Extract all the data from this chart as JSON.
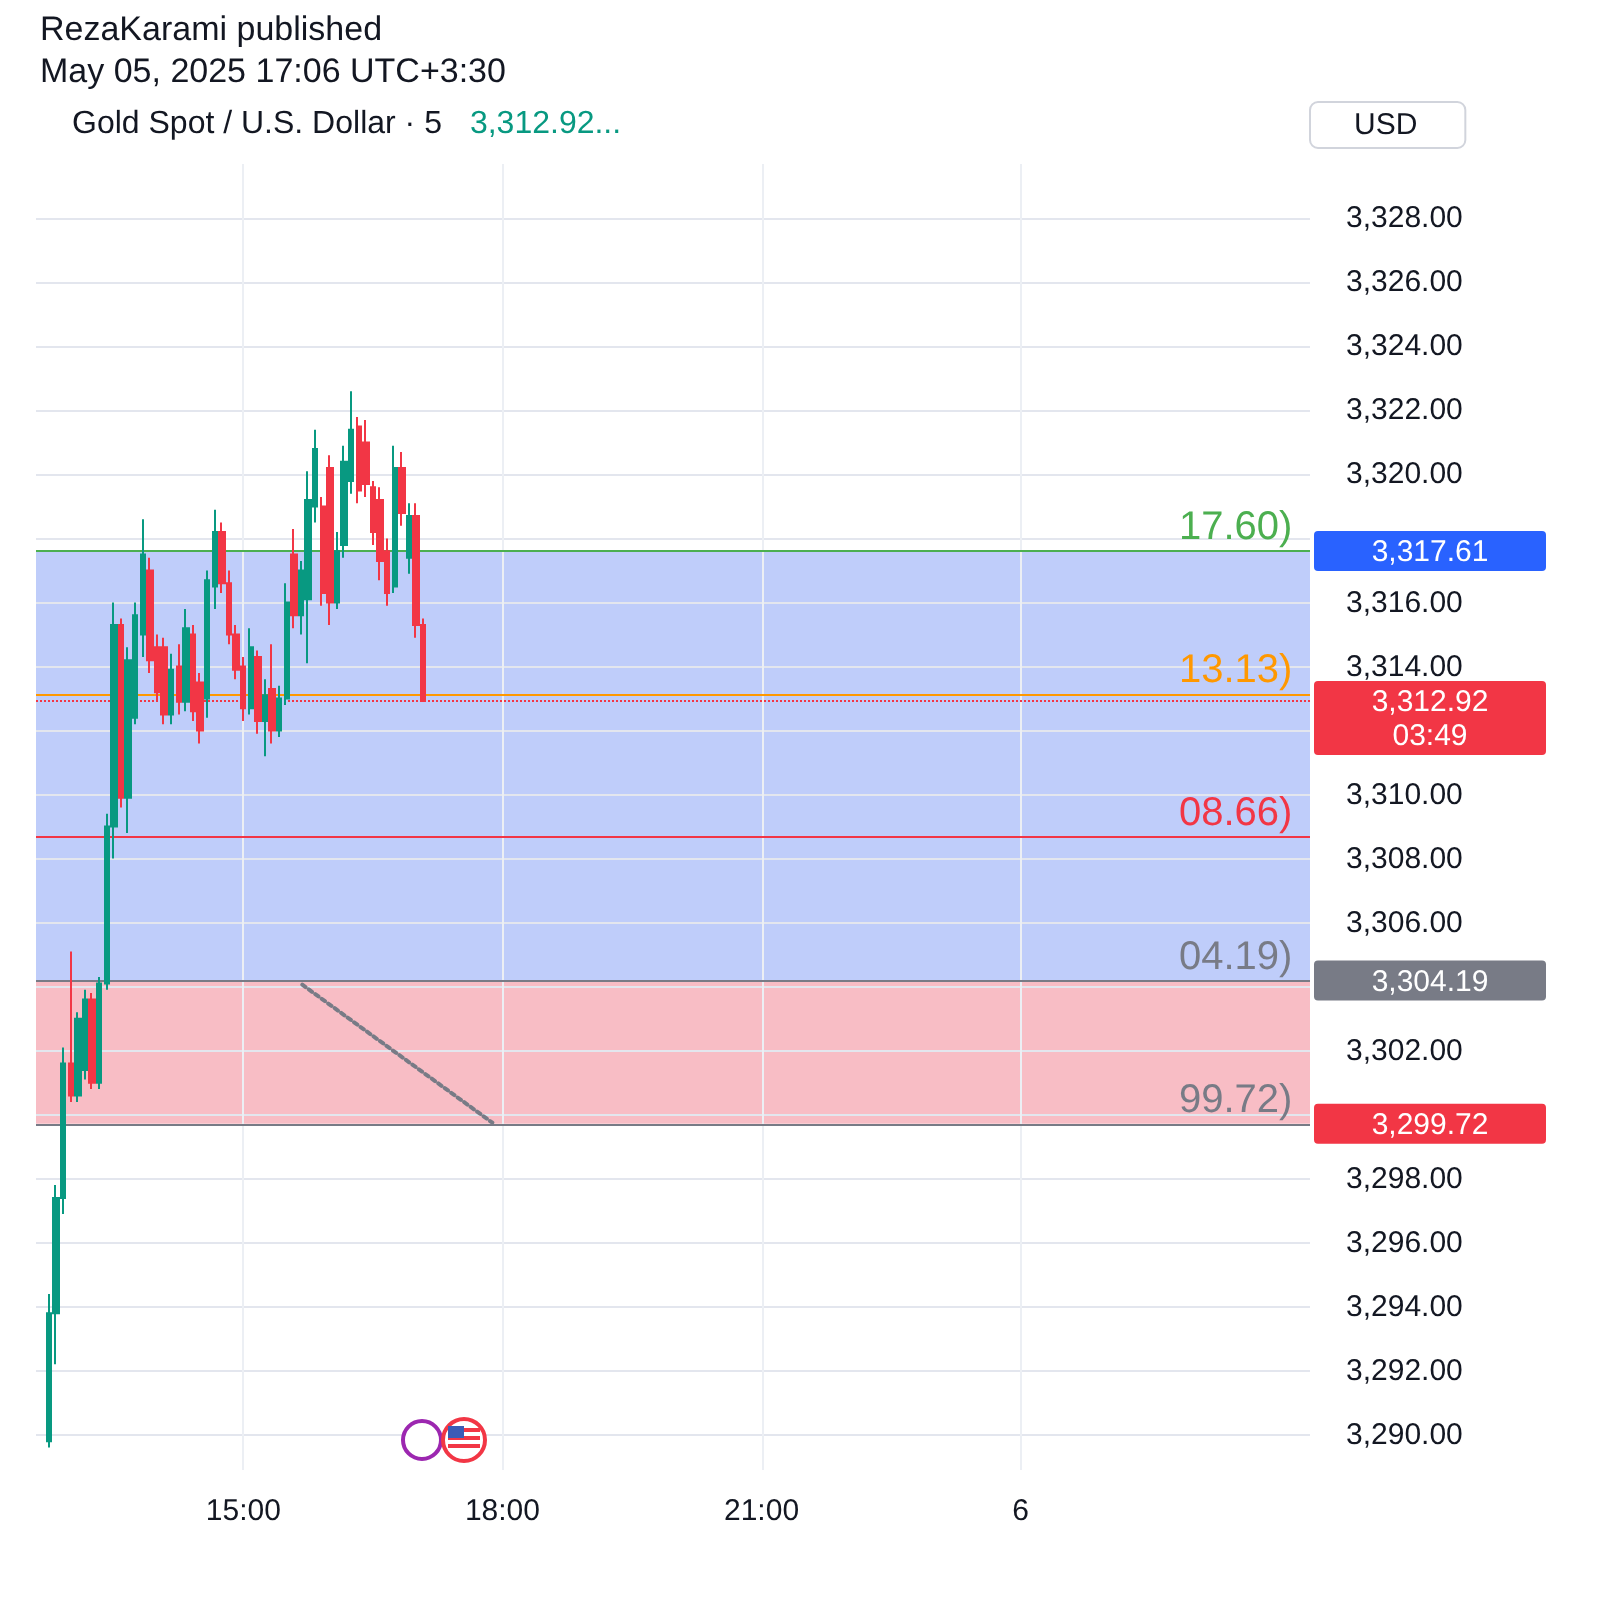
{
  "chart_data": {
    "type": "candlestick",
    "title": "Gold Spot / U.S. Dollar · 5",
    "subtitle": "3,312.92...",
    "ylabel": "USD",
    "annotations": [
      "RezaKarami published",
      "May 05, 2025 17:06 UTC+3:30",
      {
        "text": "17.60)",
        "x": "2025-05-06T01:50",
        "y": 3317.6
      },
      {
        "text": "13.13)",
        "x": "2025-05-06T01:50",
        "y": 3313.13
      },
      {
        "text": "08.66)",
        "x": "2025-05-06T01:50",
        "y": 3308.66
      },
      {
        "text": "04.19)",
        "x": "2025-05-06T01:50",
        "y": 3304.19
      },
      {
        "text": "99.72)",
        "x": "2025-05-06T01:50",
        "y": 3299.72
      },
      {
        "text": "3,317.61",
        "x": "2025-05-06T03:21",
        "y": 3317.61
      },
      {
        "text": "3,312.92\n03:49",
        "x": "2025-05-06T03:21",
        "y": 3312.92
      },
      {
        "text": "3,304.19",
        "x": "2025-05-06T03:21",
        "y": 3304.19
      },
      {
        "text": "3,299.72",
        "x": "2025-05-06T03:21",
        "y": 3299.72
      }
    ],
    "series": [
      {
        "x": [
          "2025-05-05T12:45",
          "2025-05-05T12:50",
          "2025-05-05T12:55",
          "2025-05-05T13:00",
          "2025-05-05T13:05",
          "2025-05-05T13:10",
          "2025-05-05T13:15",
          "2025-05-05T13:20",
          "2025-05-05T13:25",
          "2025-05-05T13:30",
          "2025-05-05T13:35",
          "2025-05-05T13:40",
          "2025-05-05T13:45",
          "2025-05-05T13:50",
          "2025-05-05T13:55",
          "2025-05-05T14:00",
          "2025-05-05T14:05",
          "2025-05-05T14:10",
          "2025-05-05T14:15",
          "2025-05-05T14:20",
          "2025-05-05T14:25",
          "2025-05-05T14:30",
          "2025-05-05T14:35",
          "2025-05-05T14:40",
          "2025-05-05T14:45",
          "2025-05-05T14:50",
          "2025-05-05T14:55",
          "2025-05-05T15:00",
          "2025-05-05T15:05",
          "2025-05-05T15:10",
          "2025-05-05T15:15",
          "2025-05-05T15:20",
          "2025-05-05T15:25",
          "2025-05-05T15:30",
          "2025-05-05T15:35",
          "2025-05-05T15:40",
          "2025-05-05T15:45",
          "2025-05-05T15:50",
          "2025-05-05T15:55",
          "2025-05-05T16:00",
          "2025-05-05T16:05",
          "2025-05-05T16:10",
          "2025-05-05T16:15",
          "2025-05-05T16:20",
          "2025-05-05T16:25",
          "2025-05-05T16:30",
          "2025-05-05T16:35",
          "2025-05-05T16:40",
          "2025-05-05T16:45",
          "2025-05-05T16:50",
          "2025-05-05T16:55",
          "2025-05-05T17:00",
          "2025-05-05T17:05"
        ],
        "ohlc": [
          [
            3289.8,
            3294.4,
            3289.6,
            3293.8
          ],
          [
            3293.8,
            3297.8,
            3292.2,
            3297.4
          ],
          [
            3297.4,
            3302.1,
            3296.9,
            3301.6
          ],
          [
            3301.6,
            3305.1,
            3300.4,
            3300.6
          ],
          [
            3300.6,
            3303.2,
            3300.4,
            3303.0
          ],
          [
            3301.4,
            3303.9,
            3301.1,
            3303.6
          ],
          [
            3303.6,
            3303.8,
            3300.8,
            3301.0
          ],
          [
            3301.0,
            3304.3,
            3300.8,
            3304.1
          ],
          [
            3304.1,
            3309.4,
            3303.9,
            3309.0
          ],
          [
            3309.0,
            3316.0,
            3308.0,
            3315.3
          ],
          [
            3315.3,
            3315.5,
            3309.6,
            3309.9
          ],
          [
            3309.9,
            3314.6,
            3308.8,
            3314.2
          ],
          [
            3312.4,
            3316.0,
            3312.2,
            3315.6
          ],
          [
            3315.0,
            3318.6,
            3314.3,
            3317.5
          ],
          [
            3317.0,
            3317.4,
            3313.8,
            3314.2
          ],
          [
            3314.6,
            3315.0,
            3312.9,
            3313.2
          ],
          [
            3314.6,
            3314.9,
            3312.2,
            3312.5
          ],
          [
            3312.5,
            3314.4,
            3312.2,
            3313.9
          ],
          [
            3314.0,
            3314.7,
            3312.5,
            3312.9
          ],
          [
            3312.9,
            3315.8,
            3312.6,
            3315.2
          ],
          [
            3315.0,
            3315.3,
            3312.3,
            3312.6
          ],
          [
            3313.5,
            3313.8,
            3311.6,
            3312.0
          ],
          [
            3313.0,
            3317.0,
            3312.4,
            3316.7
          ],
          [
            3316.5,
            3318.9,
            3315.8,
            3318.2
          ],
          [
            3318.2,
            3318.5,
            3316.3,
            3316.6
          ],
          [
            3316.6,
            3317.0,
            3314.7,
            3315.0
          ],
          [
            3315.0,
            3315.3,
            3313.6,
            3313.9
          ],
          [
            3314.0,
            3314.3,
            3312.3,
            3312.7
          ],
          [
            3312.7,
            3315.2,
            3312.5,
            3314.6
          ],
          [
            3314.3,
            3314.5,
            3311.9,
            3312.3
          ],
          [
            3312.3,
            3313.6,
            3311.2,
            3313.1
          ],
          [
            3313.3,
            3314.7,
            3311.6,
            3312.0
          ],
          [
            3312.0,
            3313.4,
            3311.8,
            3313.0
          ],
          [
            3313.0,
            3316.6,
            3312.8,
            3316.0
          ],
          [
            3317.5,
            3318.3,
            3315.2,
            3315.6
          ],
          [
            3315.6,
            3317.3,
            3315.0,
            3317.0
          ],
          [
            3316.1,
            3320.1,
            3314.1,
            3319.2
          ],
          [
            3319.0,
            3321.4,
            3318.5,
            3320.8
          ],
          [
            3319.0,
            3319.3,
            3315.9,
            3316.3
          ],
          [
            3320.2,
            3320.6,
            3315.3,
            3316.0
          ],
          [
            3316.0,
            3318.2,
            3315.8,
            3317.6
          ],
          [
            3317.8,
            3320.9,
            3317.4,
            3320.4
          ],
          [
            3319.8,
            3322.6,
            3319.4,
            3321.4
          ],
          [
            3321.5,
            3321.8,
            3319.1,
            3319.5
          ],
          [
            3321.0,
            3321.7,
            3319.3,
            3319.7
          ],
          [
            3319.6,
            3319.8,
            3317.8,
            3318.2
          ],
          [
            3319.2,
            3319.6,
            3316.7,
            3317.3
          ],
          [
            3317.6,
            3318.0,
            3315.9,
            3316.3
          ],
          [
            3316.5,
            3320.9,
            3316.3,
            3320.2
          ],
          [
            3320.2,
            3320.7,
            3318.4,
            3318.8
          ],
          [
            3317.4,
            3319.1,
            3316.9,
            3318.7
          ],
          [
            3318.7,
            3319.1,
            3314.9,
            3315.3
          ],
          [
            3315.3,
            3315.5,
            3312.9,
            3312.92
          ]
        ],
        "colors": [
          "#089981",
          "#089981",
          "#089981",
          "#f23645",
          "#089981",
          "#089981",
          "#f23645",
          "#089981",
          "#089981",
          "#089981",
          "#f23645",
          "#089981",
          "#089981",
          "#089981",
          "#f23645",
          "#f23645",
          "#f23645",
          "#089981",
          "#f23645",
          "#089981",
          "#f23645",
          "#f23645",
          "#089981",
          "#089981",
          "#f23645",
          "#f23645",
          "#f23645",
          "#f23645",
          "#089981",
          "#f23645",
          "#089981",
          "#f23645",
          "#089981",
          "#089981",
          "#f23645",
          "#089981",
          "#089981",
          "#089981",
          "#f23645",
          "#f23645",
          "#089981",
          "#089981",
          "#089981",
          "#f23645",
          "#f23645",
          "#f23645",
          "#f23645",
          "#f23645",
          "#089981",
          "#f23645",
          "#089981",
          "#f23645",
          "#f23645"
        ]
      },
      {
        "type": "line",
        "x": [
          "2025-05-05T15:41",
          "2025-05-05T17:53"
        ],
        "values": [
          3304.06,
          3299.75
        ],
        "color": "#787b86",
        "line_style": "dotted"
      }
    ],
    "xlim": [
      "2025-05-05T12:36",
      "2025-05-06T03:21"
    ],
    "xticks": [
      {
        "value": "2025-05-05T15:00",
        "label": "15:00"
      },
      {
        "value": "2025-05-05T18:00",
        "label": "18:00"
      },
      {
        "value": "2025-05-05T21:00",
        "label": "21:00"
      },
      {
        "value": "2025-05-06",
        "label": "6"
      }
    ],
    "ylim": [
      3288.9,
      3329.7
    ],
    "yticks": [
      {
        "value": 3290,
        "label": "3,290.00"
      },
      {
        "value": 3292,
        "label": "3,292.00"
      },
      {
        "value": 3294,
        "label": "3,294.00"
      },
      {
        "value": 3296,
        "label": "3,296.00"
      },
      {
        "value": 3298,
        "label": "3,298.00"
      },
      {
        "value": 3300,
        "label": null
      },
      {
        "value": 3302,
        "label": "3,302.00"
      },
      {
        "value": 3304,
        "label": null
      },
      {
        "value": 3306,
        "label": "3,306.00"
      },
      {
        "value": 3308,
        "label": "3,308.00"
      },
      {
        "value": 3310,
        "label": "3,310.00"
      },
      {
        "value": 3312,
        "label": null
      },
      {
        "value": 3314,
        "label": "3,314.00"
      },
      {
        "value": 3316,
        "label": "3,316.00"
      },
      {
        "value": 3318,
        "label": null
      },
      {
        "value": 3320,
        "label": "3,320.00"
      },
      {
        "value": 3322,
        "label": "3,322.00"
      },
      {
        "value": 3324,
        "label": "3,324.00"
      },
      {
        "value": 3326,
        "label": "3,326.00"
      },
      {
        "value": 3328,
        "label": "3,328.00"
      }
    ],
    "grid": true,
    "ref_lines": [
      {
        "axis": "y",
        "value": 3317.6,
        "color": "#4caf50"
      },
      {
        "axis": "y",
        "value": 3313.13,
        "color": "#ff9800"
      },
      {
        "axis": "y",
        "value": 3312.92,
        "color": "#f23645",
        "line_style": "dotted"
      },
      {
        "axis": "y",
        "value": 3308.66,
        "color": "#f23645"
      },
      {
        "axis": "y",
        "value": 3304.19,
        "color": "#787b86"
      },
      {
        "axis": "y",
        "value": 3299.72,
        "color": "#787b86"
      }
    ],
    "bands": [
      {
        "axis": "y",
        "from": 3304.19,
        "to": 3317.61,
        "color": "#bfcdfa"
      },
      {
        "axis": "y",
        "from": 3299.72,
        "to": 3304.19,
        "color": "#f8bdc5"
      }
    ]
  }
}
